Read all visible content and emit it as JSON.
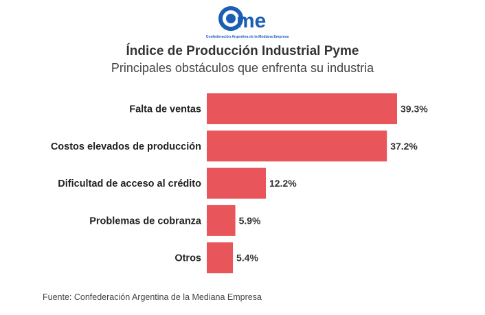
{
  "logo": {
    "text": "came",
    "tagline": "Confederación Argentina de la Mediana Empresa",
    "color": "#1a5fb4"
  },
  "chart_data": {
    "type": "bar",
    "orientation": "horizontal",
    "title": "Índice de Producción Industrial Pyme",
    "subtitle": "Principales obstáculos que enfrenta su industria",
    "categories": [
      "Falta de ventas",
      "Costos elevados de producción",
      "Dificultad de acceso al crédito",
      "Problemas de cobranza",
      "Otros"
    ],
    "values": [
      39.3,
      37.2,
      12.2,
      5.9,
      5.4
    ],
    "data_labels": [
      "39.3%",
      "37.2%",
      "12.2%",
      "5.9%",
      "5.4%"
    ],
    "unit": "%",
    "bar_color": "#e8555a",
    "grid": false
  },
  "source": "Fuente: Confederación Argentina de la Mediana Empresa"
}
